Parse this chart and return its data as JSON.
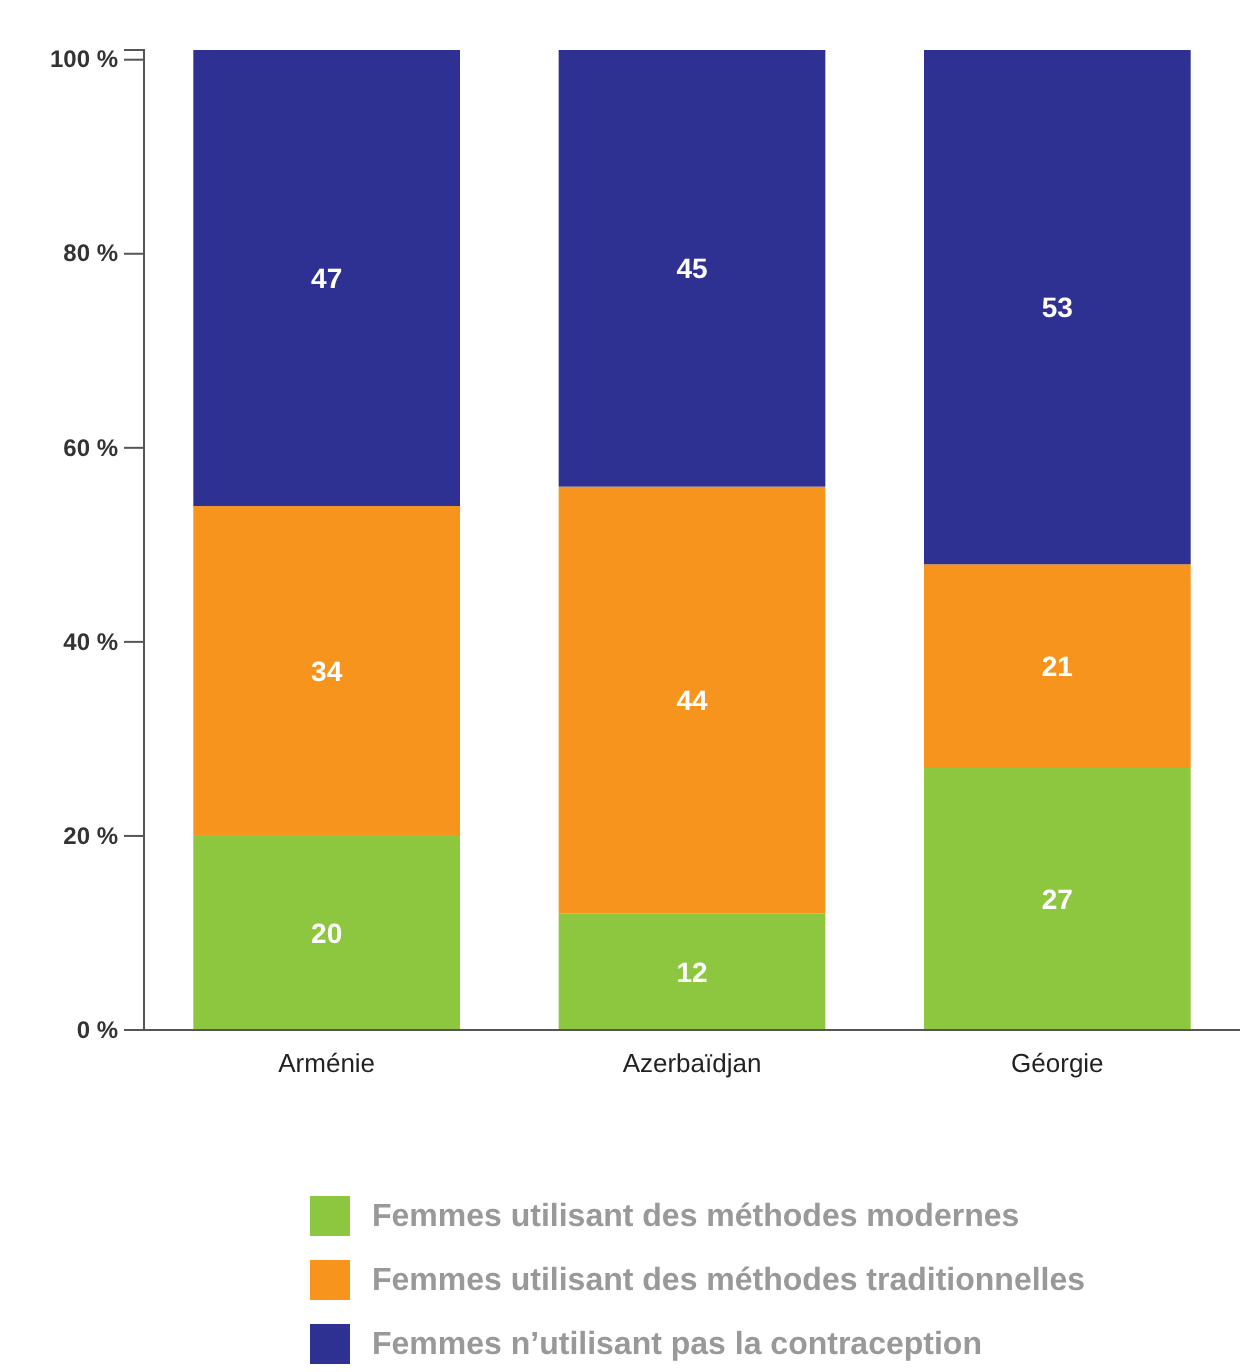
{
  "chart_data": {
    "type": "bar",
    "stacked": true,
    "categories": [
      "Arménie",
      "Azerbaïdjan",
      "Géorgie"
    ],
    "series": [
      {
        "name": "Femmes utilisant des méthodes modernes",
        "color": "#8dc63f",
        "values": [
          20,
          12,
          27
        ]
      },
      {
        "name": "Femmes utilisant des méthodes traditionnelles",
        "color": "#f7941d",
        "values": [
          34,
          44,
          21
        ]
      },
      {
        "name": "Femmes n’utilisant pas la contraception",
        "color": "#2e3192",
        "values": [
          47,
          45,
          53
        ]
      }
    ],
    "ylim": [
      0,
      101
    ],
    "yticks": [
      {
        "value": 0,
        "label": "0 %"
      },
      {
        "value": 20,
        "label": "20 %"
      },
      {
        "value": 40,
        "label": "40 %"
      },
      {
        "value": 60,
        "label": "60 %"
      },
      {
        "value": 80,
        "label": "80 %"
      },
      {
        "value": 100,
        "label": "100 %"
      }
    ],
    "data_labels": true,
    "legend": "bottom",
    "grid": false
  }
}
